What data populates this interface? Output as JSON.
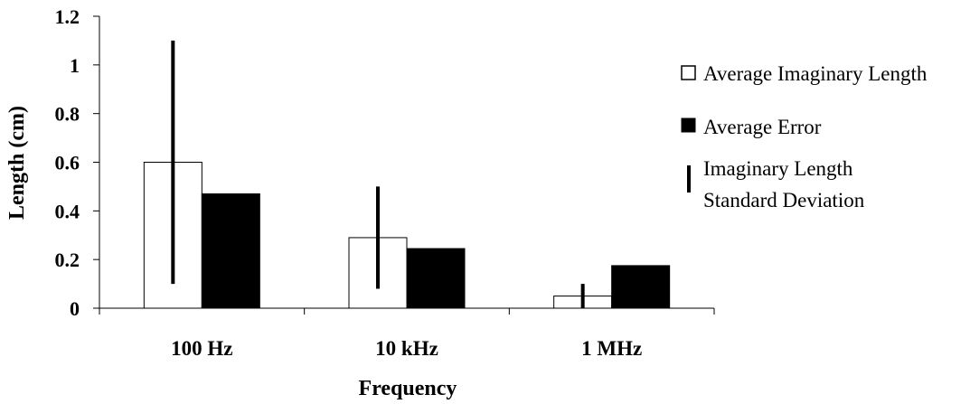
{
  "chart_data": {
    "type": "bar",
    "xlabel": "Frequency",
    "ylabel": "Length (cm)",
    "categories": [
      "100 Hz",
      "10 kHz",
      "1 MHz"
    ],
    "ylim": [
      0,
      1.2
    ],
    "yticks": [
      "0",
      "0.2",
      "0.4",
      "0.6",
      "0.8",
      "1",
      "1.2"
    ],
    "grid": false,
    "legend_position": "right",
    "series": [
      {
        "name": "Average Imaginary Length",
        "values": [
          0.6,
          0.29,
          0.05
        ],
        "color": "#ffffff",
        "stroke": "#000000",
        "error_range": [
          [
            0.1,
            1.1
          ],
          [
            0.08,
            0.5
          ],
          [
            0.0,
            0.1
          ]
        ]
      },
      {
        "name": "Average Error",
        "values": [
          0.47,
          0.245,
          0.175
        ],
        "color": "#000000",
        "stroke": "#000000"
      }
    ],
    "legend": [
      {
        "label": "Average Imaginary Length",
        "symbol": "open-square"
      },
      {
        "label": "Average Error",
        "symbol": "filled-square"
      },
      {
        "label_lines": [
          "Imaginary Length",
          "Standard Deviation"
        ],
        "symbol": "vertical-bar"
      }
    ]
  }
}
